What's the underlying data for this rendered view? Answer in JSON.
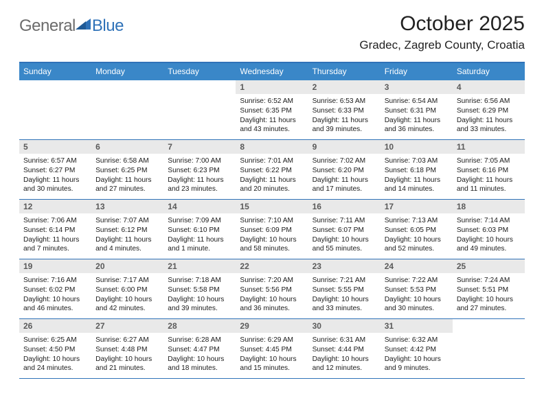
{
  "colors": {
    "brand_blue": "#2f72b8",
    "header_blue": "#3a87c8",
    "logo_gray": "#6b6b6b",
    "text": "#1a1a1a",
    "daynum_bg": "#e9e9e9",
    "daynum_fg": "#5a5a5a",
    "white": "#ffffff"
  },
  "typography": {
    "title_fontsize": 30,
    "location_fontsize": 17,
    "logo_fontsize": 24,
    "weekday_fontsize": 12,
    "daynum_fontsize": 12,
    "body_fontsize": 10.2
  },
  "logo": {
    "general": "General",
    "blue": "Blue"
  },
  "title": "October 2025",
  "location": "Gradec, Zagreb County, Croatia",
  "weekdays": [
    "Sunday",
    "Monday",
    "Tuesday",
    "Wednesday",
    "Thursday",
    "Friday",
    "Saturday"
  ],
  "weeks": [
    [
      {
        "day": "",
        "lines": []
      },
      {
        "day": "",
        "lines": []
      },
      {
        "day": "",
        "lines": []
      },
      {
        "day": "1",
        "lines": [
          "Sunrise: 6:52 AM",
          "Sunset: 6:35 PM",
          "Daylight: 11 hours and 43 minutes."
        ]
      },
      {
        "day": "2",
        "lines": [
          "Sunrise: 6:53 AM",
          "Sunset: 6:33 PM",
          "Daylight: 11 hours and 39 minutes."
        ]
      },
      {
        "day": "3",
        "lines": [
          "Sunrise: 6:54 AM",
          "Sunset: 6:31 PM",
          "Daylight: 11 hours and 36 minutes."
        ]
      },
      {
        "day": "4",
        "lines": [
          "Sunrise: 6:56 AM",
          "Sunset: 6:29 PM",
          "Daylight: 11 hours and 33 minutes."
        ]
      }
    ],
    [
      {
        "day": "5",
        "lines": [
          "Sunrise: 6:57 AM",
          "Sunset: 6:27 PM",
          "Daylight: 11 hours and 30 minutes."
        ]
      },
      {
        "day": "6",
        "lines": [
          "Sunrise: 6:58 AM",
          "Sunset: 6:25 PM",
          "Daylight: 11 hours and 27 minutes."
        ]
      },
      {
        "day": "7",
        "lines": [
          "Sunrise: 7:00 AM",
          "Sunset: 6:23 PM",
          "Daylight: 11 hours and 23 minutes."
        ]
      },
      {
        "day": "8",
        "lines": [
          "Sunrise: 7:01 AM",
          "Sunset: 6:22 PM",
          "Daylight: 11 hours and 20 minutes."
        ]
      },
      {
        "day": "9",
        "lines": [
          "Sunrise: 7:02 AM",
          "Sunset: 6:20 PM",
          "Daylight: 11 hours and 17 minutes."
        ]
      },
      {
        "day": "10",
        "lines": [
          "Sunrise: 7:03 AM",
          "Sunset: 6:18 PM",
          "Daylight: 11 hours and 14 minutes."
        ]
      },
      {
        "day": "11",
        "lines": [
          "Sunrise: 7:05 AM",
          "Sunset: 6:16 PM",
          "Daylight: 11 hours and 11 minutes."
        ]
      }
    ],
    [
      {
        "day": "12",
        "lines": [
          "Sunrise: 7:06 AM",
          "Sunset: 6:14 PM",
          "Daylight: 11 hours and 7 minutes."
        ]
      },
      {
        "day": "13",
        "lines": [
          "Sunrise: 7:07 AM",
          "Sunset: 6:12 PM",
          "Daylight: 11 hours and 4 minutes."
        ]
      },
      {
        "day": "14",
        "lines": [
          "Sunrise: 7:09 AM",
          "Sunset: 6:10 PM",
          "Daylight: 11 hours and 1 minute."
        ]
      },
      {
        "day": "15",
        "lines": [
          "Sunrise: 7:10 AM",
          "Sunset: 6:09 PM",
          "Daylight: 10 hours and 58 minutes."
        ]
      },
      {
        "day": "16",
        "lines": [
          "Sunrise: 7:11 AM",
          "Sunset: 6:07 PM",
          "Daylight: 10 hours and 55 minutes."
        ]
      },
      {
        "day": "17",
        "lines": [
          "Sunrise: 7:13 AM",
          "Sunset: 6:05 PM",
          "Daylight: 10 hours and 52 minutes."
        ]
      },
      {
        "day": "18",
        "lines": [
          "Sunrise: 7:14 AM",
          "Sunset: 6:03 PM",
          "Daylight: 10 hours and 49 minutes."
        ]
      }
    ],
    [
      {
        "day": "19",
        "lines": [
          "Sunrise: 7:16 AM",
          "Sunset: 6:02 PM",
          "Daylight: 10 hours and 46 minutes."
        ]
      },
      {
        "day": "20",
        "lines": [
          "Sunrise: 7:17 AM",
          "Sunset: 6:00 PM",
          "Daylight: 10 hours and 42 minutes."
        ]
      },
      {
        "day": "21",
        "lines": [
          "Sunrise: 7:18 AM",
          "Sunset: 5:58 PM",
          "Daylight: 10 hours and 39 minutes."
        ]
      },
      {
        "day": "22",
        "lines": [
          "Sunrise: 7:20 AM",
          "Sunset: 5:56 PM",
          "Daylight: 10 hours and 36 minutes."
        ]
      },
      {
        "day": "23",
        "lines": [
          "Sunrise: 7:21 AM",
          "Sunset: 5:55 PM",
          "Daylight: 10 hours and 33 minutes."
        ]
      },
      {
        "day": "24",
        "lines": [
          "Sunrise: 7:22 AM",
          "Sunset: 5:53 PM",
          "Daylight: 10 hours and 30 minutes."
        ]
      },
      {
        "day": "25",
        "lines": [
          "Sunrise: 7:24 AM",
          "Sunset: 5:51 PM",
          "Daylight: 10 hours and 27 minutes."
        ]
      }
    ],
    [
      {
        "day": "26",
        "lines": [
          "Sunrise: 6:25 AM",
          "Sunset: 4:50 PM",
          "Daylight: 10 hours and 24 minutes."
        ]
      },
      {
        "day": "27",
        "lines": [
          "Sunrise: 6:27 AM",
          "Sunset: 4:48 PM",
          "Daylight: 10 hours and 21 minutes."
        ]
      },
      {
        "day": "28",
        "lines": [
          "Sunrise: 6:28 AM",
          "Sunset: 4:47 PM",
          "Daylight: 10 hours and 18 minutes."
        ]
      },
      {
        "day": "29",
        "lines": [
          "Sunrise: 6:29 AM",
          "Sunset: 4:45 PM",
          "Daylight: 10 hours and 15 minutes."
        ]
      },
      {
        "day": "30",
        "lines": [
          "Sunrise: 6:31 AM",
          "Sunset: 4:44 PM",
          "Daylight: 10 hours and 12 minutes."
        ]
      },
      {
        "day": "31",
        "lines": [
          "Sunrise: 6:32 AM",
          "Sunset: 4:42 PM",
          "Daylight: 10 hours and 9 minutes."
        ]
      },
      {
        "day": "",
        "lines": []
      }
    ]
  ]
}
